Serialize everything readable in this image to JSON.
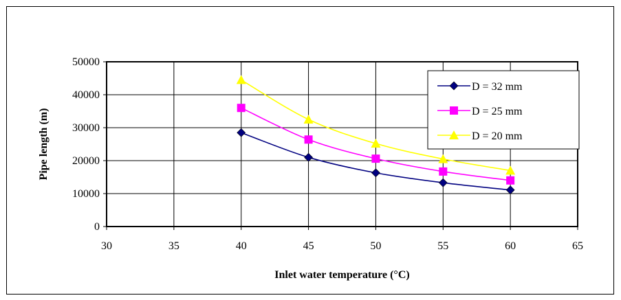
{
  "chart_data": {
    "type": "line",
    "title": "",
    "xlabel": "Inlet water temperature (°C)",
    "ylabel": "Pipe length (m)",
    "xlim": [
      30,
      65
    ],
    "ylim": [
      0,
      50000
    ],
    "xticks": [
      30,
      35,
      40,
      45,
      50,
      55,
      60,
      65
    ],
    "yticks": [
      0,
      10000,
      20000,
      30000,
      40000,
      50000
    ],
    "grid": true,
    "legend_position": "top-right",
    "x": [
      40,
      45,
      50,
      55,
      60
    ],
    "series": [
      {
        "name": "D = 32 mm",
        "marker": "diamond",
        "color": "#000080",
        "values": [
          28500,
          21000,
          16300,
          13300,
          11100
        ]
      },
      {
        "name": "D = 25 mm",
        "marker": "square",
        "color": "#ff00ff",
        "values": [
          36000,
          26400,
          20600,
          16700,
          14000
        ]
      },
      {
        "name": "D = 20 mm",
        "marker": "triangle",
        "color": "#ffff00",
        "values": [
          44500,
          32500,
          25200,
          20500,
          17000
        ]
      }
    ]
  }
}
